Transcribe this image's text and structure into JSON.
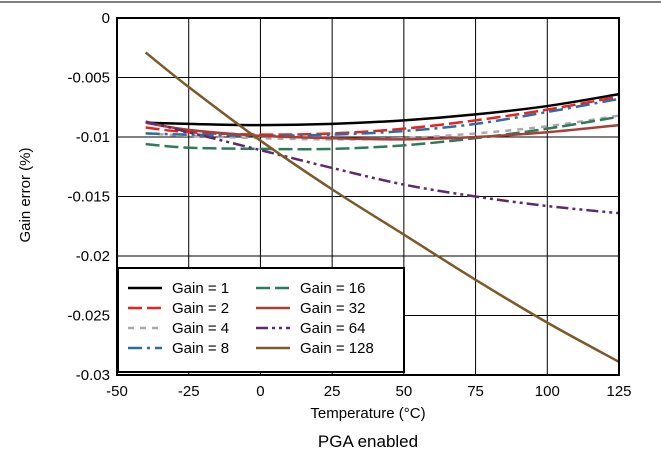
{
  "chart_data": {
    "type": "line",
    "title": "",
    "caption": "PGA enabled",
    "xlabel": "Temperature (°C)",
    "ylabel": "Gain error (%)",
    "xlim": [
      -50,
      125
    ],
    "ylim": [
      -0.03,
      0
    ],
    "xticks": [
      -50,
      -25,
      0,
      25,
      50,
      75,
      100,
      125
    ],
    "yticks": [
      0,
      -0.005,
      -0.01,
      -0.015,
      -0.02,
      -0.025,
      -0.03
    ],
    "xtick_labels": [
      "-50",
      "-25",
      "0",
      "25",
      "50",
      "75",
      "100",
      "125"
    ],
    "ytick_labels": [
      "0",
      "-0.005",
      "-0.01",
      "-0.015",
      "-0.02",
      "-0.025",
      "-0.03"
    ],
    "grid": true,
    "legend_position": "bottom-left",
    "series": [
      {
        "name": "Gain = 1",
        "color": "#000000",
        "dash": "solid",
        "x": [
          -40,
          -25,
          0,
          25,
          50,
          75,
          100,
          125
        ],
        "y": [
          -0.0088,
          -0.0089,
          -0.009,
          -0.0089,
          -0.0086,
          -0.0081,
          -0.0074,
          -0.0064
        ]
      },
      {
        "name": "Gain = 2",
        "color": "#e8231f",
        "dash": "long-dash",
        "x": [
          -40,
          -25,
          0,
          25,
          50,
          75,
          100,
          125
        ],
        "y": [
          -0.0092,
          -0.0096,
          -0.0098,
          -0.0097,
          -0.0093,
          -0.0086,
          -0.0077,
          -0.0066
        ]
      },
      {
        "name": "Gain = 4",
        "color": "#aaaaaa",
        "dash": "short-dash",
        "x": [
          -40,
          -25,
          0,
          25,
          50,
          75,
          100,
          125
        ],
        "y": [
          -0.0097,
          -0.0099,
          -0.0101,
          -0.0102,
          -0.0101,
          -0.0097,
          -0.0091,
          -0.0082
        ]
      },
      {
        "name": "Gain = 8",
        "color": "#2e6da4",
        "dash": "dash-dot",
        "x": [
          -40,
          -25,
          0,
          25,
          50,
          75,
          100,
          125
        ],
        "y": [
          -0.0097,
          -0.0098,
          -0.0099,
          -0.0098,
          -0.0095,
          -0.0089,
          -0.0079,
          -0.0068
        ]
      },
      {
        "name": "Gain = 16",
        "color": "#2e7a5a",
        "dash": "long-dash",
        "x": [
          -40,
          -25,
          0,
          25,
          50,
          75,
          100,
          125
        ],
        "y": [
          -0.0106,
          -0.0109,
          -0.011,
          -0.011,
          -0.0107,
          -0.0101,
          -0.0093,
          -0.0083
        ]
      },
      {
        "name": "Gain = 32",
        "color": "#a83e3a",
        "dash": "solid",
        "x": [
          -40,
          -25,
          0,
          25,
          50,
          75,
          100,
          125
        ],
        "y": [
          -0.0088,
          -0.0094,
          -0.0099,
          -0.0101,
          -0.0102,
          -0.01,
          -0.0096,
          -0.009
        ]
      },
      {
        "name": "Gain = 64",
        "color": "#5e2a6e",
        "dash": "dash-dot-dot",
        "x": [
          -40,
          -25,
          0,
          25,
          50,
          75,
          100,
          125
        ],
        "y": [
          -0.0087,
          -0.0096,
          -0.0111,
          -0.0126,
          -0.014,
          -0.015,
          -0.0158,
          -0.0164
        ]
      },
      {
        "name": "Gain = 128",
        "color": "#7a5a2a",
        "dash": "solid",
        "x": [
          -40,
          -25,
          0,
          25,
          50,
          75,
          100,
          125
        ],
        "y": [
          -0.0029,
          -0.0058,
          -0.0103,
          -0.0144,
          -0.0182,
          -0.022,
          -0.0256,
          -0.0289
        ]
      }
    ]
  }
}
